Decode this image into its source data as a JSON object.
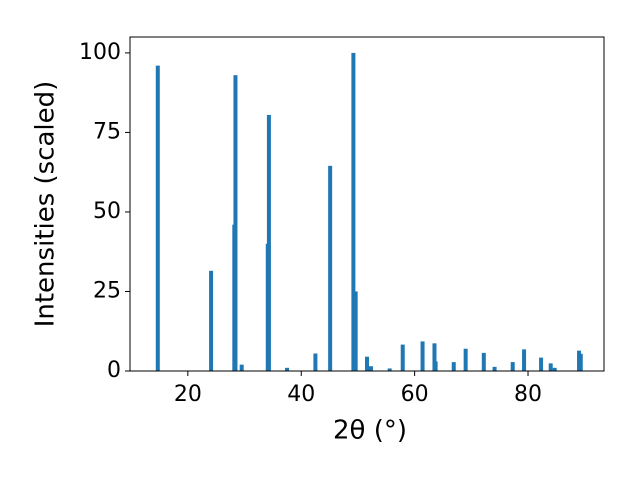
{
  "chart_data": {
    "type": "bar",
    "x_label": "2θ (°)",
    "y_label": "Intensities (scaled)",
    "x": [
      14.7,
      24.1,
      28.2,
      28.4,
      29.5,
      34.1,
      34.3,
      37.5,
      42.5,
      45.1,
      49.2,
      49.6,
      51.6,
      52.3,
      55.6,
      57.9,
      61.4,
      63.5,
      63.7,
      66.9,
      69.0,
      72.2,
      74.1,
      77.3,
      79.3,
      82.3,
      84.0,
      84.7,
      89.0,
      89.3
    ],
    "values": [
      96,
      31.5,
      46,
      93,
      2,
      40,
      80.5,
      1,
      5.5,
      64.5,
      100,
      25,
      4.5,
      1.5,
      0.8,
      8.3,
      9.3,
      8.7,
      3,
      2.8,
      7,
      5.7,
      1.3,
      2.8,
      6.8,
      4.2,
      2.4,
      1,
      6.4,
      5.4
    ],
    "color": "#1f77b4",
    "xlim": [
      9.8,
      93.4
    ],
    "ylim": [
      0,
      105
    ],
    "xticks": [
      20,
      40,
      60,
      80
    ],
    "yticks": [
      0,
      25,
      50,
      75,
      100
    ]
  }
}
